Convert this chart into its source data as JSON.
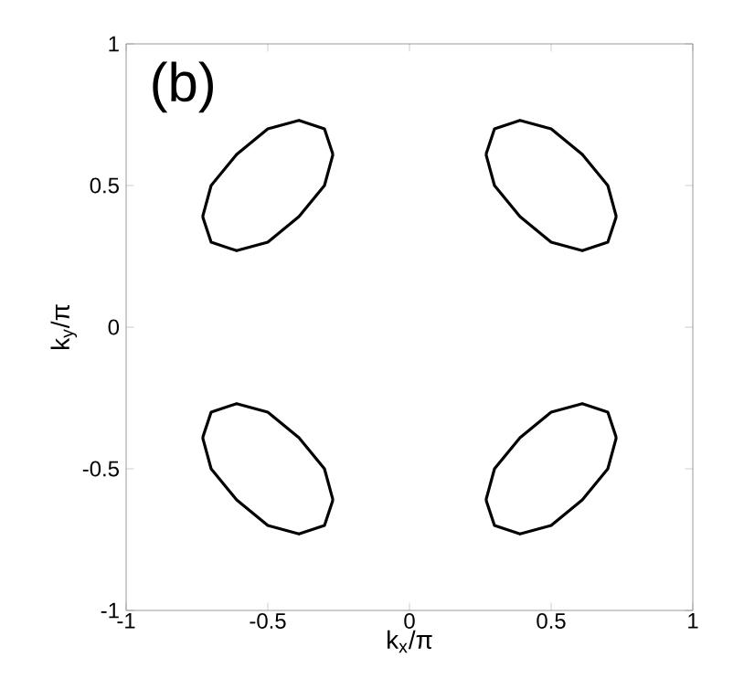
{
  "chart_data": {
    "type": "line",
    "xlabel": "k$_{x}$/π",
    "ylabel": "k$_{y}$/π",
    "annotations": [
      "(b)"
    ],
    "xlim": [
      -1,
      1
    ],
    "ylim": [
      -1,
      1
    ],
    "xticks": [
      -1,
      -0.5,
      0,
      0.5,
      1
    ],
    "yticks": [
      -1,
      -0.5,
      0,
      0.5,
      1
    ],
    "grid": false,
    "marker": "none",
    "line_style": "solid",
    "series": [
      {
        "color": "#000000",
        "x": [
          0.27,
          0.3,
          0.39,
          0.5,
          0.61,
          0.7,
          0.73
        ],
        "values": [
          0.61,
          0.7,
          0.73,
          0.7,
          0.61,
          0.5,
          0.39
        ]
      },
      {
        "color": "#000000",
        "x": [
          0.27,
          0.3,
          0.39,
          0.5,
          0.61,
          0.7,
          0.73
        ],
        "values": [
          0.61,
          0.5,
          0.39,
          0.3,
          0.27,
          0.3,
          0.39
        ]
      },
      {
        "color": "#000000",
        "x": [
          -0.73,
          -0.7,
          -0.61,
          -0.5,
          -0.39,
          -0.3,
          -0.27
        ],
        "values": [
          0.39,
          0.5,
          0.61,
          0.7,
          0.73,
          0.7,
          0.61
        ]
      },
      {
        "color": "#000000",
        "x": [
          -0.73,
          -0.7,
          -0.61,
          -0.5,
          -0.39,
          -0.3,
          -0.27
        ],
        "values": [
          0.39,
          0.3,
          0.27,
          0.3,
          0.39,
          0.5,
          0.61
        ]
      },
      {
        "color": "#000000",
        "x": [
          -0.73,
          -0.7,
          -0.61,
          -0.5,
          -0.39,
          -0.3,
          -0.27
        ],
        "values": [
          -0.39,
          -0.3,
          -0.27,
          -0.3,
          -0.39,
          -0.5,
          -0.61
        ]
      },
      {
        "color": "#000000",
        "x": [
          -0.73,
          -0.7,
          -0.61,
          -0.5,
          -0.39,
          -0.3,
          -0.27
        ],
        "values": [
          -0.39,
          -0.5,
          -0.61,
          -0.7,
          -0.73,
          -0.7,
          -0.61
        ]
      },
      {
        "color": "#000000",
        "x": [
          0.27,
          0.3,
          0.39,
          0.5,
          0.61,
          0.7,
          0.73
        ],
        "values": [
          -0.61,
          -0.5,
          -0.39,
          -0.3,
          -0.27,
          -0.3,
          -0.39
        ]
      },
      {
        "color": "#000000",
        "x": [
          0.27,
          0.3,
          0.39,
          0.5,
          0.61,
          0.7,
          0.73
        ],
        "values": [
          -0.61,
          -0.7,
          -0.73,
          -0.7,
          -0.61,
          -0.5,
          -0.39
        ]
      }
    ]
  }
}
